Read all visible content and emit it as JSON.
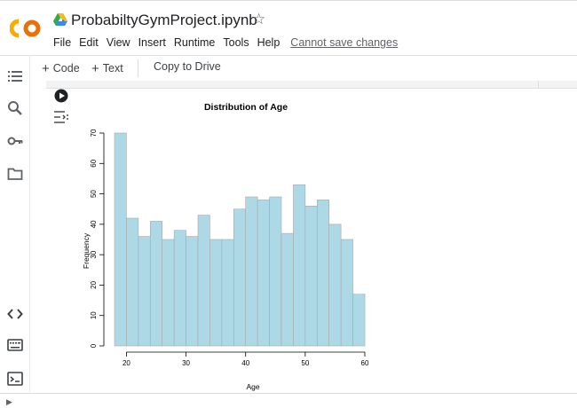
{
  "app": {
    "logo_text": "CO",
    "title": "ProbabiltyGymProject.ipynb"
  },
  "menu": {
    "items": [
      "File",
      "Edit",
      "View",
      "Insert",
      "Runtime",
      "Tools",
      "Help"
    ],
    "warning": "Cannot save changes"
  },
  "toolbar": {
    "code_label": "Code",
    "text_label": "Text",
    "drive_label": "Copy to Drive"
  },
  "sidebar": {
    "icons": [
      "list-icon",
      "search-icon",
      "key-icon",
      "folder-icon",
      "code-icon",
      "terminal-list-icon",
      "terminal-icon"
    ]
  },
  "colors": {
    "bar": "#add8e6",
    "bar_edge": "#a9a9a9",
    "logo_orange": "#f9ab00",
    "logo_dark": "#e8710a"
  },
  "chart_data": {
    "type": "bar",
    "title": "Distribution of Age",
    "xlabel": "Age",
    "ylabel": "Frequency",
    "bin_edges": [
      18,
      20,
      22,
      24,
      26,
      28,
      30,
      32,
      34,
      36,
      38,
      40,
      42,
      44,
      46,
      48,
      50,
      52,
      54,
      56,
      58,
      60
    ],
    "values": [
      70,
      42,
      36,
      41,
      35,
      38,
      36,
      43,
      35,
      35,
      45,
      49,
      48,
      49,
      37,
      53,
      46,
      48,
      40,
      35,
      17
    ],
    "xlim": [
      18,
      60
    ],
    "ylim": [
      0,
      70
    ],
    "xticks": [
      20,
      30,
      40,
      50,
      60
    ],
    "yticks": [
      0,
      10,
      20,
      30,
      40,
      50,
      60,
      70
    ],
    "grid": false
  }
}
